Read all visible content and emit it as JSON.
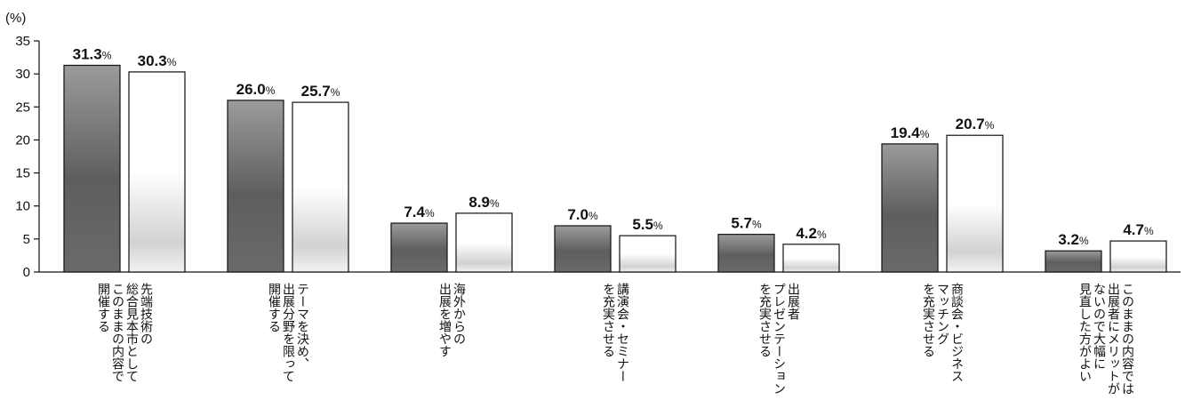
{
  "chart_data": {
    "type": "bar",
    "unit_label": "(%)",
    "ylim": [
      0,
      35
    ],
    "yticks": [
      0,
      5,
      10,
      15,
      20,
      25,
      30,
      35
    ],
    "value_suffix": "%",
    "categories": [
      [
        "先端技術の",
        "総合見本市として",
        "このままの内容で",
        "開催する"
      ],
      [
        "テーマを決め、",
        "出展分野を限って",
        "開催する"
      ],
      [
        "海外からの",
        "出展を増やす"
      ],
      [
        "講演会・セミナー",
        "を充実させる"
      ],
      [
        "出展者",
        "プレゼンテーション",
        "を充実させる"
      ],
      [
        "商談会・ビジネス",
        "マッチング",
        "を充実させる"
      ],
      [
        "このままの内容では",
        "出展者にメリットが",
        "ないので大幅に",
        "見直した方がよい"
      ]
    ],
    "series": [
      {
        "values": [
          31.3,
          26.0,
          7.4,
          7.0,
          5.7,
          19.4,
          3.2
        ],
        "labels": [
          "31.3",
          "26.0",
          "7.4",
          "7.0",
          "5.7",
          "19.4",
          "3.2"
        ]
      },
      {
        "values": [
          30.3,
          25.7,
          8.9,
          5.5,
          4.2,
          20.7,
          4.7
        ],
        "labels": [
          "30.3",
          "25.7",
          "8.9",
          "5.5",
          "4.2",
          "20.7",
          "4.7"
        ]
      }
    ],
    "grid": false,
    "legend": "none"
  }
}
